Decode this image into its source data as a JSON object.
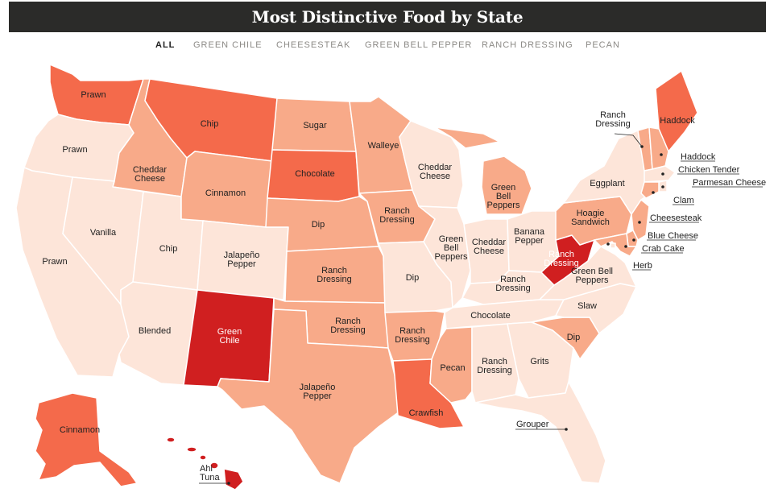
{
  "title": "Most Distinctive Food by State",
  "tabs": [
    {
      "label": "ALL",
      "active": true
    },
    {
      "label": "GREEN CHILE",
      "active": false
    },
    {
      "label": "CHEESESTEAK",
      "active": false
    },
    {
      "label": "GREEN BELL PEPPER",
      "active": false
    },
    {
      "label": "RANCH DRESSING",
      "active": false
    },
    {
      "label": "PECAN",
      "active": false
    }
  ],
  "colors": {
    "level1": "#fde5d9",
    "level2": "#f8aa89",
    "level3": "#f46a4b",
    "level4": "#d01f20",
    "border": "#ffffff"
  },
  "states": {
    "WA": {
      "food": "Prawn",
      "level": 3
    },
    "OR": {
      "food": "Prawn",
      "level": 1
    },
    "CA": {
      "food": "Prawn",
      "level": 1
    },
    "ID": {
      "food": "Cheddar Cheese",
      "level": 2
    },
    "NV": {
      "food": "Vanilla",
      "level": 1
    },
    "UT": {
      "food": "Chip",
      "level": 1
    },
    "AZ": {
      "food": "Blended",
      "level": 1
    },
    "MT": {
      "food": "Chip",
      "level": 3
    },
    "WY": {
      "food": "Cinnamon",
      "level": 2
    },
    "CO": {
      "food": "Jalapeño Pepper",
      "level": 1
    },
    "NM": {
      "food": "Green Chile",
      "level": 4
    },
    "ND": {
      "food": "Sugar",
      "level": 2
    },
    "SD": {
      "food": "Chocolate",
      "level": 3
    },
    "NE": {
      "food": "Dip",
      "level": 2
    },
    "KS": {
      "food": "Ranch Dressing",
      "level": 2
    },
    "OK": {
      "food": "Ranch Dressing",
      "level": 2
    },
    "TX": {
      "food": "Jalapeño Pepper",
      "level": 2
    },
    "MN": {
      "food": "Walleye",
      "level": 2
    },
    "IA": {
      "food": "Ranch Dressing",
      "level": 2
    },
    "MO": {
      "food": "Dip",
      "level": 1
    },
    "AR": {
      "food": "Ranch Dressing",
      "level": 2
    },
    "LA": {
      "food": "Crawfish",
      "level": 3
    },
    "WI": {
      "food": "Cheddar Cheese",
      "level": 1
    },
    "IL": {
      "food": "Green Bell Peppers",
      "level": 1
    },
    "MI": {
      "food": "Green Bell Peppers",
      "level": 2
    },
    "IN": {
      "food": "Cheddar Cheese",
      "level": 1
    },
    "OH": {
      "food": "Banana Pepper",
      "level": 1
    },
    "KY": {
      "food": "Ranch Dressing",
      "level": 1
    },
    "TN": {
      "food": "Chocolate",
      "level": 1
    },
    "MS": {
      "food": "Pecan",
      "level": 2
    },
    "AL": {
      "food": "Ranch Dressing",
      "level": 1
    },
    "GA": {
      "food": "Grits",
      "level": 1
    },
    "FL": {
      "food": "Grouper",
      "level": 1
    },
    "SC": {
      "food": "Dip",
      "level": 2
    },
    "NC": {
      "food": "Slaw",
      "level": 1
    },
    "VA": {
      "food": "Green Bell Peppers",
      "level": 1
    },
    "WV": {
      "food": "Ranch Dressing",
      "level": 4
    },
    "PA": {
      "food": "Hoagie Sandwich",
      "level": 2
    },
    "NY": {
      "food": "Eggplant",
      "level": 1
    },
    "ME": {
      "food": "Haddock",
      "level": 3
    },
    "VT": {
      "food": "Ranch Dressing",
      "level": 2
    },
    "NH": {
      "food": "Haddock",
      "level": 2
    },
    "MA": {
      "food": "Chicken Tender",
      "level": 1
    },
    "RI": {
      "food": "Parmesan Cheese",
      "level": 1
    },
    "CT": {
      "food": "Clam",
      "level": 2
    },
    "NJ": {
      "food": "Cheesesteak",
      "level": 2
    },
    "DE": {
      "food": "Blue Cheese",
      "level": 2
    },
    "MD": {
      "food": "Crab Cake",
      "level": 2
    },
    "DC": {
      "food": "Herb",
      "level": 1
    },
    "AK": {
      "food": "Cinnamon",
      "level": 3
    },
    "HI": {
      "food": "Ahi Tuna",
      "level": 4
    }
  }
}
